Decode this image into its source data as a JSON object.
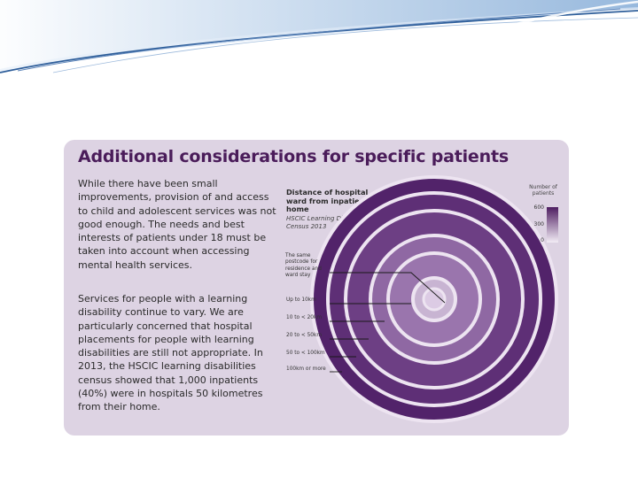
{
  "slide": {
    "colors": {
      "swoosh_dark": "#2e5e9a",
      "swoosh_light": "#cfe0f2",
      "card_bg": "#ddd3e3",
      "title": "#4a1c5a"
    }
  },
  "card": {
    "title": "Additional considerations for specific patients",
    "paragraphs": [
      "While there have been small improvements, provision of and access to child and adolescent services was not good enough. The needs and best interests of patients under 18 must be taken into account when accessing mental health services.",
      "Services for people with a learning disability continue to vary. We are particularly concerned that hospital placements for people with learning disabilities are still not appropriate. In 2013, the HSCIC learning disabilities census showed that 1,000 inpatients (40%) were in hospitals 50 kilometres from their home."
    ]
  },
  "diagram": {
    "title": "Distance of hospital ward from inpatient's home",
    "source": "HSCIC Learning Disabilities Census 2013",
    "legend": {
      "title": "Number of patients",
      "ticks": [
        "600",
        "300",
        "0"
      ]
    },
    "rings": [
      {
        "label_lines": [
          "The same",
          "postcode for",
          "residence and",
          "ward stay"
        ],
        "level": 0.35,
        "color": "#c8b4d2"
      },
      {
        "label_lines": [
          "Up to 10km"
        ],
        "level": 0.55,
        "color": "#9a75ad"
      },
      {
        "label_lines": [
          "10 to < 20km"
        ],
        "level": 0.6,
        "color": "#8f68a3"
      },
      {
        "label_lines": [
          "20 to < 50km"
        ],
        "level": 0.75,
        "color": "#6d3f84"
      },
      {
        "label_lines": [
          "50 to < 100km"
        ],
        "level": 0.85,
        "color": "#5e2f76"
      },
      {
        "label_lines": [
          "100km or more"
        ],
        "level": 0.95,
        "color": "#52236a"
      }
    ]
  }
}
